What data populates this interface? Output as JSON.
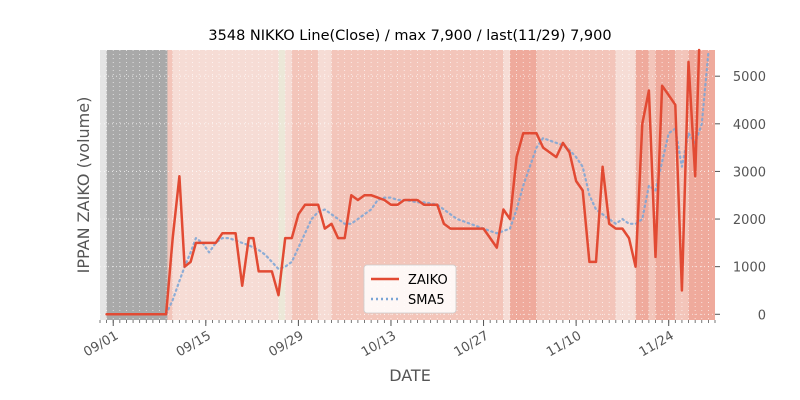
{
  "chart_data": {
    "type": "line",
    "title": "3548 NIKKO Line(Close) / max 7,900 / last(11/29) 7,900",
    "xlabel": "DATE",
    "ylabel": "IPPAN ZAIKO (volume)",
    "x_start": "2023-08-30",
    "x_end": "2023-12-01",
    "xlim_days": [
      0,
      93
    ],
    "ylim": [
      -120,
      5550
    ],
    "yticks": [
      0,
      1000,
      2000,
      3000,
      4000,
      5000
    ],
    "xticks": [
      {
        "day": 2,
        "label": "09/01"
      },
      {
        "day": 16,
        "label": "09/15"
      },
      {
        "day": 30,
        "label": "09/29"
      },
      {
        "day": 44,
        "label": "10/13"
      },
      {
        "day": 58,
        "label": "10/27"
      },
      {
        "day": 72,
        "label": "11/10"
      },
      {
        "day": 86,
        "label": "11/24"
      }
    ],
    "series": [
      {
        "name": "ZAIKO",
        "color": "#e24a33",
        "style": "solid",
        "points": [
          [
            1,
            0
          ],
          [
            2,
            0
          ],
          [
            3,
            0
          ],
          [
            4,
            0
          ],
          [
            5,
            0
          ],
          [
            6,
            0
          ],
          [
            7,
            0
          ],
          [
            8,
            0
          ],
          [
            9,
            0
          ],
          [
            10,
            0
          ],
          [
            11,
            1600
          ],
          [
            12,
            2900
          ],
          [
            12.8,
            1000
          ],
          [
            13.7,
            1100
          ],
          [
            14.5,
            1500
          ],
          [
            15.5,
            1500
          ],
          [
            16.5,
            1500
          ],
          [
            17.5,
            1500
          ],
          [
            18.5,
            1700
          ],
          [
            19.5,
            1700
          ],
          [
            20.5,
            1700
          ],
          [
            21.5,
            600
          ],
          [
            22.5,
            1600
          ],
          [
            23.2,
            1600
          ],
          [
            24,
            900
          ],
          [
            25,
            900
          ],
          [
            26,
            900
          ],
          [
            27,
            400
          ],
          [
            28,
            1600
          ],
          [
            29,
            1600
          ],
          [
            30,
            2100
          ],
          [
            31,
            2300
          ],
          [
            32,
            2300
          ],
          [
            33,
            2300
          ],
          [
            34,
            1800
          ],
          [
            35,
            1900
          ],
          [
            36,
            1600
          ],
          [
            37,
            1600
          ],
          [
            38,
            2500
          ],
          [
            39,
            2400
          ],
          [
            40,
            2500
          ],
          [
            41,
            2500
          ],
          [
            42,
            2450
          ],
          [
            43,
            2400
          ],
          [
            44,
            2300
          ],
          [
            45,
            2300
          ],
          [
            46,
            2400
          ],
          [
            47,
            2400
          ],
          [
            48,
            2400
          ],
          [
            49,
            2300
          ],
          [
            50,
            2300
          ],
          [
            51,
            2300
          ],
          [
            52,
            1900
          ],
          [
            53,
            1800
          ],
          [
            54,
            1800
          ],
          [
            55,
            1800
          ],
          [
            56,
            1800
          ],
          [
            57,
            1800
          ],
          [
            58,
            1800
          ],
          [
            59,
            1600
          ],
          [
            60,
            1400
          ],
          [
            61,
            2200
          ],
          [
            62,
            2000
          ],
          [
            63,
            3300
          ],
          [
            64,
            3800
          ],
          [
            65,
            3800
          ],
          [
            66,
            3800
          ],
          [
            67,
            3500
          ],
          [
            68,
            3400
          ],
          [
            69,
            3300
          ],
          [
            70,
            3600
          ],
          [
            71,
            3400
          ],
          [
            72,
            2800
          ],
          [
            73,
            2600
          ],
          [
            74,
            1100
          ],
          [
            75,
            1100
          ],
          [
            76,
            3100
          ],
          [
            77,
            1900
          ],
          [
            78,
            1800
          ],
          [
            79,
            1800
          ],
          [
            80,
            1600
          ],
          [
            81,
            1000
          ],
          [
            82,
            4000
          ],
          [
            83,
            4700
          ],
          [
            84,
            1200
          ],
          [
            85,
            4800
          ],
          [
            86,
            4600
          ],
          [
            87,
            4400
          ],
          [
            88,
            500
          ],
          [
            89,
            5300
          ],
          [
            90,
            2900
          ],
          [
            90.6,
            5550
          ]
        ]
      },
      {
        "name": "SMA5",
        "color": "#7aa5d6",
        "style": "dotted",
        "points": [
          [
            1,
            0
          ],
          [
            2,
            0
          ],
          [
            3,
            0
          ],
          [
            4,
            0
          ],
          [
            5,
            0
          ],
          [
            6,
            0
          ],
          [
            7,
            0
          ],
          [
            8,
            0
          ],
          [
            9,
            0
          ],
          [
            10,
            0
          ],
          [
            11,
            300
          ],
          [
            12,
            700
          ],
          [
            12.8,
            1000
          ],
          [
            13.7,
            1300
          ],
          [
            14.5,
            1600
          ],
          [
            15.5,
            1500
          ],
          [
            16.5,
            1300
          ],
          [
            17.5,
            1500
          ],
          [
            18.5,
            1600
          ],
          [
            19.5,
            1600
          ],
          [
            20.5,
            1550
          ],
          [
            21.5,
            1500
          ],
          [
            22.5,
            1450
          ],
          [
            23.2,
            1400
          ],
          [
            24,
            1350
          ],
          [
            25,
            1250
          ],
          [
            26,
            1100
          ],
          [
            27,
            950
          ],
          [
            28,
            1000
          ],
          [
            29,
            1100
          ],
          [
            30,
            1400
          ],
          [
            31,
            1700
          ],
          [
            32,
            2000
          ],
          [
            33,
            2150
          ],
          [
            34,
            2200
          ],
          [
            35,
            2100
          ],
          [
            36,
            2000
          ],
          [
            37,
            1900
          ],
          [
            38,
            1900
          ],
          [
            39,
            2000
          ],
          [
            40,
            2100
          ],
          [
            41,
            2200
          ],
          [
            42,
            2400
          ],
          [
            43,
            2450
          ],
          [
            44,
            2450
          ],
          [
            45,
            2400
          ],
          [
            46,
            2400
          ],
          [
            47,
            2380
          ],
          [
            48,
            2350
          ],
          [
            49,
            2350
          ],
          [
            50,
            2330
          ],
          [
            51,
            2300
          ],
          [
            52,
            2200
          ],
          [
            53,
            2100
          ],
          [
            54,
            2000
          ],
          [
            55,
            1950
          ],
          [
            56,
            1900
          ],
          [
            57,
            1850
          ],
          [
            58,
            1800
          ],
          [
            59,
            1750
          ],
          [
            60,
            1700
          ],
          [
            61,
            1750
          ],
          [
            62,
            1800
          ],
          [
            63,
            2200
          ],
          [
            64,
            2700
          ],
          [
            65,
            3100
          ],
          [
            66,
            3500
          ],
          [
            67,
            3700
          ],
          [
            68,
            3650
          ],
          [
            69,
            3600
          ],
          [
            70,
            3550
          ],
          [
            71,
            3450
          ],
          [
            72,
            3300
          ],
          [
            73,
            3100
          ],
          [
            74,
            2500
          ],
          [
            75,
            2200
          ],
          [
            76,
            2100
          ],
          [
            77,
            2000
          ],
          [
            78,
            1900
          ],
          [
            79,
            2000
          ],
          [
            80,
            1900
          ],
          [
            81,
            1900
          ],
          [
            82,
            2000
          ],
          [
            83,
            2700
          ],
          [
            84,
            2600
          ],
          [
            85,
            3200
          ],
          [
            86,
            3800
          ],
          [
            87,
            3900
          ],
          [
            88,
            3100
          ],
          [
            89,
            3800
          ],
          [
            90,
            3600
          ],
          [
            91,
            4000
          ],
          [
            92,
            5500
          ]
        ]
      }
    ],
    "legend": [
      {
        "label": "ZAIKO"
      },
      {
        "label": "SMA5"
      }
    ],
    "legend_position": "lower-center",
    "grid": true,
    "colors": {
      "axes_bg": "#e5e5e5",
      "grid": "#ffffff",
      "no_data_band": "#a9a9a9",
      "band_light": "#f6dcd5",
      "band_mid": "#f3c5ba",
      "band_strong": "#efaa9c",
      "band_pale": "#ece8d8",
      "text": "#555555",
      "title": "#000000"
    },
    "background_bands": [
      {
        "from": 0,
        "to": 1,
        "shade": "axes_bg"
      },
      {
        "from": 1,
        "to": 10.2,
        "shade": "no_data_band"
      },
      {
        "from": 10.2,
        "to": 11,
        "shade": "band_mid"
      },
      {
        "from": 11,
        "to": 27,
        "shade": "band_light"
      },
      {
        "from": 27,
        "to": 28,
        "shade": "band_pale"
      },
      {
        "from": 28,
        "to": 29,
        "shade": "band_light"
      },
      {
        "from": 29,
        "to": 33,
        "shade": "band_mid"
      },
      {
        "from": 33,
        "to": 35,
        "shade": "band_light"
      },
      {
        "from": 35,
        "to": 61,
        "shade": "band_mid"
      },
      {
        "from": 61,
        "to": 62,
        "shade": "band_light"
      },
      {
        "from": 62,
        "to": 66,
        "shade": "band_strong"
      },
      {
        "from": 66,
        "to": 78,
        "shade": "band_mid"
      },
      {
        "from": 78,
        "to": 81,
        "shade": "band_light"
      },
      {
        "from": 81,
        "to": 83,
        "shade": "band_strong"
      },
      {
        "from": 83,
        "to": 84,
        "shade": "band_mid"
      },
      {
        "from": 84,
        "to": 87,
        "shade": "band_strong"
      },
      {
        "from": 87,
        "to": 89,
        "shade": "band_mid"
      },
      {
        "from": 89,
        "to": 93,
        "shade": "band_strong"
      }
    ]
  }
}
